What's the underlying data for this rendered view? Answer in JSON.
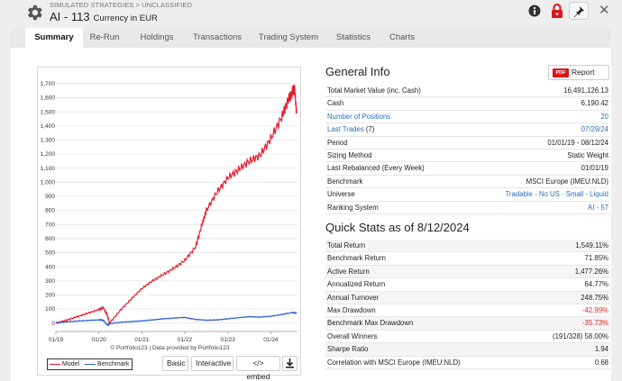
{
  "header": {
    "breadcrumb": "SIMULATED STRATEGIES > UNCLASSIFIED",
    "title": "AI - 113",
    "subtitle": "Currency in EUR"
  },
  "tabs": [
    {
      "label": "Summary",
      "active": true
    },
    {
      "label": "Re-Run"
    },
    {
      "label": "Holdings"
    },
    {
      "label": "Transactions"
    },
    {
      "label": "Trading System"
    },
    {
      "label": "Statistics"
    },
    {
      "label": "Charts"
    }
  ],
  "general_info": {
    "title": "General Info",
    "pdf_badge": "PDF",
    "report_label": "Report",
    "rows": [
      {
        "label": "Total Market Value (inc. Cash)",
        "value": "16,491,126.13"
      },
      {
        "label": "Cash",
        "value": "6,190.42"
      },
      {
        "label": "Number of Positions",
        "value": "20"
      },
      {
        "label": "Last Trades",
        "label_suffix": "(7)",
        "value": "07/29/24"
      },
      {
        "label": "Period",
        "value": "01/01/19 - 08/12/24"
      },
      {
        "label": "Sizing Method",
        "value": "Static Weight"
      },
      {
        "label": "Last Rebalanced (Every Week)",
        "value": "01/01/19"
      },
      {
        "label": "Benchmark",
        "value": "MSCI Europe (IMEU:NLD)"
      },
      {
        "label": "Universe",
        "value": "Tradable - No US - Small - Liquid"
      },
      {
        "label": "Ranking System",
        "value": "AI - 57"
      }
    ]
  },
  "quick_stats": {
    "title": "Quick Stats as of 8/12/2024",
    "rows": [
      {
        "label": "Total Return",
        "value": "1,549.11%"
      },
      {
        "label": "Benchmark Return",
        "value": "71.85%"
      },
      {
        "label": "Active Return",
        "value": "1,477.26%"
      },
      {
        "label": "Annualized Return",
        "value": "64.77%"
      },
      {
        "label": "Annual Turnover",
        "value": "248.75%"
      },
      {
        "label": "Max Drawdown",
        "value": "-42.99%"
      },
      {
        "label": "Benchmark Max Drawdown",
        "value": "-35.73%"
      },
      {
        "label": "Overall Winners",
        "value": "(191/328) 58.00%"
      },
      {
        "label": "Sharpe Ratio",
        "value": "1.94"
      },
      {
        "label": "Correlation with MSCI Europe (IMEU:NLD)",
        "value": "0.68"
      }
    ]
  },
  "chart": {
    "credit": "© Portfolio123 | Data provided by Portfolio123",
    "legend_model": "Model",
    "legend_benchmark": "Benchmark",
    "btn_basic": "Basic",
    "btn_interactive": "Interactive",
    "btn_embed": "</> embed"
  },
  "colors": {
    "model": "#e8192c",
    "benchmark": "#2a5bd7",
    "link": "#2a6ebd",
    "negative": "#e02020",
    "pdf": "#d9161b"
  },
  "chart_data": {
    "type": "line",
    "title": "",
    "xlabel": "",
    "ylabel": "",
    "x_ticks": [
      "01/19",
      "01/20",
      "01/21",
      "01/22",
      "01/23",
      "01/24"
    ],
    "y_ticks": [
      0,
      100,
      200,
      300,
      400,
      500,
      600,
      700,
      800,
      900,
      1000,
      1100,
      1200,
      1300,
      1400,
      1500,
      1600,
      1700
    ],
    "xlim": [
      2019.0,
      2024.62
    ],
    "ylim": [
      -60,
      1750
    ],
    "grid": "horizontal",
    "legend_position": "bottom-left",
    "series": [
      {
        "name": "Model",
        "x": [
          2019.0,
          2019.25,
          2019.5,
          2019.75,
          2020.0,
          2020.1,
          2020.2,
          2020.25,
          2020.5,
          2020.75,
          2021.0,
          2021.25,
          2021.5,
          2021.75,
          2022.0,
          2022.25,
          2022.4,
          2022.5,
          2022.75,
          2023.0,
          2023.25,
          2023.5,
          2023.75,
          2024.0,
          2024.25,
          2024.4,
          2024.5,
          2024.55,
          2024.6
        ],
        "values": [
          0,
          20,
          45,
          70,
          95,
          110,
          55,
          0,
          90,
          170,
          245,
          300,
          345,
          390,
          445,
          540,
          700,
          800,
          930,
          1030,
          1090,
          1150,
          1190,
          1310,
          1460,
          1580,
          1640,
          1670,
          1490
        ]
      },
      {
        "name": "Benchmark",
        "x": [
          2019.0,
          2019.25,
          2019.5,
          2019.75,
          2020.0,
          2020.1,
          2020.2,
          2020.25,
          2020.5,
          2020.75,
          2021.0,
          2021.25,
          2021.5,
          2021.75,
          2022.0,
          2022.25,
          2022.5,
          2022.75,
          2023.0,
          2023.25,
          2023.5,
          2023.75,
          2024.0,
          2024.25,
          2024.5,
          2024.6
        ],
        "values": [
          0,
          8,
          14,
          18,
          22,
          20,
          -15,
          -5,
          5,
          10,
          15,
          22,
          30,
          35,
          40,
          25,
          20,
          22,
          30,
          38,
          45,
          42,
          48,
          60,
          75,
          70
        ]
      }
    ]
  }
}
